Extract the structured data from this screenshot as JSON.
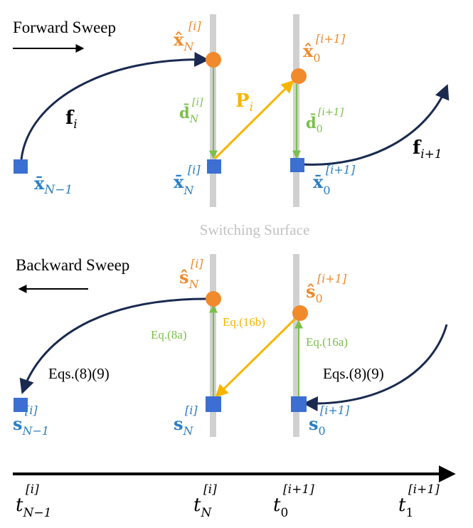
{
  "forward": {
    "title": "Forward Sweep",
    "x_hat_N": {
      "base": "x̂",
      "sub": "N",
      "sup": "[i]"
    },
    "x_hat_0": {
      "base": "x̂",
      "sub": "0",
      "sup": "[i+1]"
    },
    "d_bar_N": {
      "base": "d̄",
      "sub": "N",
      "sup": "[i]"
    },
    "d_bar_0": {
      "base": "d̄",
      "sub": "0",
      "sup": "[i+1]"
    },
    "P": {
      "base": "P",
      "sub": "i"
    },
    "f_i": {
      "base": "f",
      "sub": "i"
    },
    "f_i1": {
      "base": "f",
      "sub": "i+1"
    },
    "x_bar_Nm1": {
      "base": "x̄",
      "sub": "N−1"
    },
    "x_bar_N": {
      "base": "x̄",
      "sub": "N",
      "sup": "[i]"
    },
    "x_bar_0": {
      "base": "x̄",
      "sub": "0",
      "sup": "[i+1]"
    }
  },
  "switching_surface": "Switching Surface",
  "backward": {
    "title": "Backward Sweep",
    "s_hat_N": {
      "base": "ŝ",
      "sub": "N",
      "sup": "[i]"
    },
    "s_hat_0": {
      "base": "ŝ",
      "sub": "0",
      "sup": "[i+1]"
    },
    "eq8a": "Eq.(8a)",
    "eq16b": "Eq.(16b)",
    "eq16a": "Eq.(16a)",
    "eqs_left": "Eqs.(8)(9)",
    "eqs_right": "Eqs.(8)(9)",
    "s_Nm1": {
      "base": "s",
      "sub": "N−1",
      "sup": "[i]"
    },
    "s_N": {
      "base": "s",
      "sub": "N",
      "sup": "[i]"
    },
    "s_0": {
      "base": "s",
      "sub": "0",
      "sup": "[i+1]"
    }
  },
  "time_axis": {
    "t_Nm1": {
      "base": "t",
      "sub": "N−1",
      "sup": "[i]"
    },
    "t_N": {
      "base": "t",
      "sub": "N",
      "sup": "[i]"
    },
    "t_0": {
      "base": "t",
      "sub": "0",
      "sup": "[i+1]"
    },
    "t_1": {
      "base": "t",
      "sub": "1",
      "sup": "[i+1]"
    }
  },
  "colors": {
    "dark_navy": "#1a2a4f",
    "orange": "#f08a2c",
    "blue_square": "#3c6fd1",
    "blue_text": "#2a7ec4",
    "green": "#7bbf4a",
    "yellow": "#f7b500",
    "gray_bar": "#d0d0d0",
    "gray_text": "#c2c2c2",
    "black": "#000000"
  }
}
